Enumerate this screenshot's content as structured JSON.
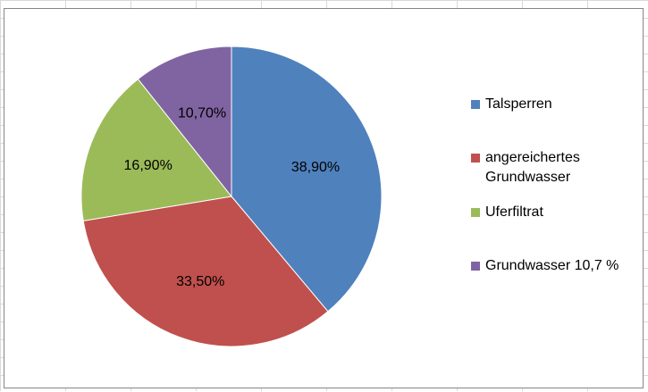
{
  "chart_data": {
    "type": "pie",
    "title": "",
    "labels": [
      "Talsperren",
      "angereichertes Grundwasser",
      "Uferfiltrat",
      "Grundwasser 10,7 %"
    ],
    "values": [
      38.9,
      33.5,
      16.9,
      10.7
    ],
    "data_labels": [
      "38,90%",
      "33,50%",
      "16,90%",
      "10,70%"
    ],
    "colors": [
      "#4f81bd",
      "#c0504d",
      "#9bbb59",
      "#8064a2"
    ],
    "start_angle_deg": 0,
    "direction": "clockwise",
    "legend_position": "right"
  },
  "legend": {
    "items": [
      {
        "text": "Talsperren",
        "color": "#4f81bd"
      },
      {
        "text": "angereichertes\nGrundwasser",
        "color": "#c0504d"
      },
      {
        "text": "Uferfiltrat",
        "color": "#9bbb59"
      },
      {
        "text": "Grundwasser 10,7 %",
        "color": "#8064a2"
      }
    ]
  }
}
